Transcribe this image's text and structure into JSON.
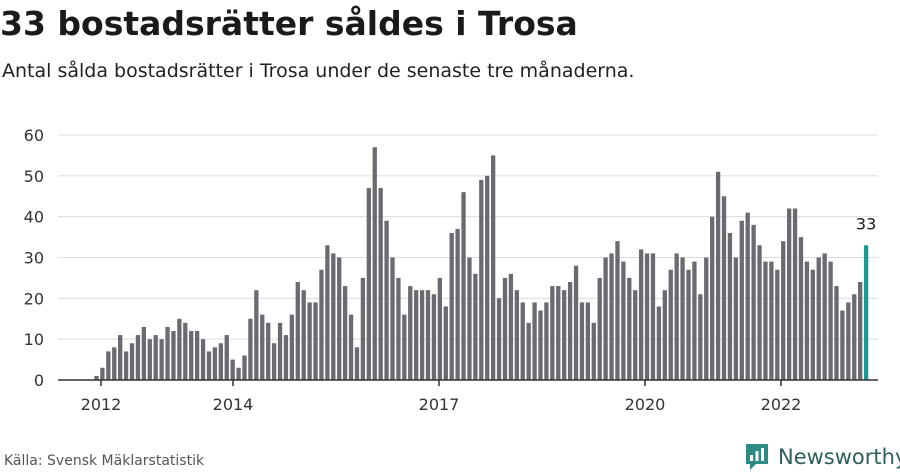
{
  "title": "33 bostadsrätter såldes i Trosa",
  "subtitle": "Antal sålda bostadsrätter i Trosa under de senaste tre månaderna.",
  "source": "Källa: Svensk Mäklarstatistik",
  "brand": {
    "name": "Newsworthy",
    "color": "#2e8b83"
  },
  "colors": {
    "bar": "#6b6a70",
    "highlight": "#1a9a92",
    "grid": "#dcdcdc",
    "axis": "#333333",
    "text": "#333333"
  },
  "chart_data": {
    "type": "bar",
    "y_ticks": [
      0,
      10,
      20,
      30,
      40,
      50,
      60
    ],
    "ylim": [
      0,
      60
    ],
    "x_ticks": [
      "2012",
      "2014",
      "2017",
      "2020",
      "2022"
    ],
    "values": [
      1,
      3,
      7,
      8,
      11,
      7,
      9,
      11,
      13,
      10,
      11,
      10,
      13,
      12,
      15,
      14,
      12,
      12,
      10,
      7,
      8,
      9,
      11,
      5,
      3,
      6,
      15,
      22,
      16,
      14,
      9,
      14,
      11,
      16,
      24,
      22,
      19,
      19,
      27,
      33,
      31,
      30,
      23,
      16,
      8,
      25,
      47,
      57,
      47,
      39,
      30,
      25,
      16,
      23,
      22,
      22,
      22,
      21,
      25,
      18,
      36,
      37,
      46,
      30,
      26,
      49,
      50,
      55,
      20,
      25,
      26,
      22,
      19,
      14,
      19,
      17,
      19,
      23,
      23,
      22,
      24,
      28,
      19,
      19,
      14,
      25,
      30,
      31,
      34,
      29,
      25,
      22,
      32,
      31,
      31,
      18,
      22,
      27,
      31,
      30,
      27,
      29,
      21,
      30,
      40,
      51,
      45,
      36,
      30,
      39,
      41,
      38,
      33,
      29,
      29,
      27,
      34,
      42,
      42,
      35,
      29,
      27,
      30,
      31,
      29,
      23,
      17,
      19,
      21,
      24,
      33
    ],
    "highlight_last": true,
    "last_label": "33"
  }
}
